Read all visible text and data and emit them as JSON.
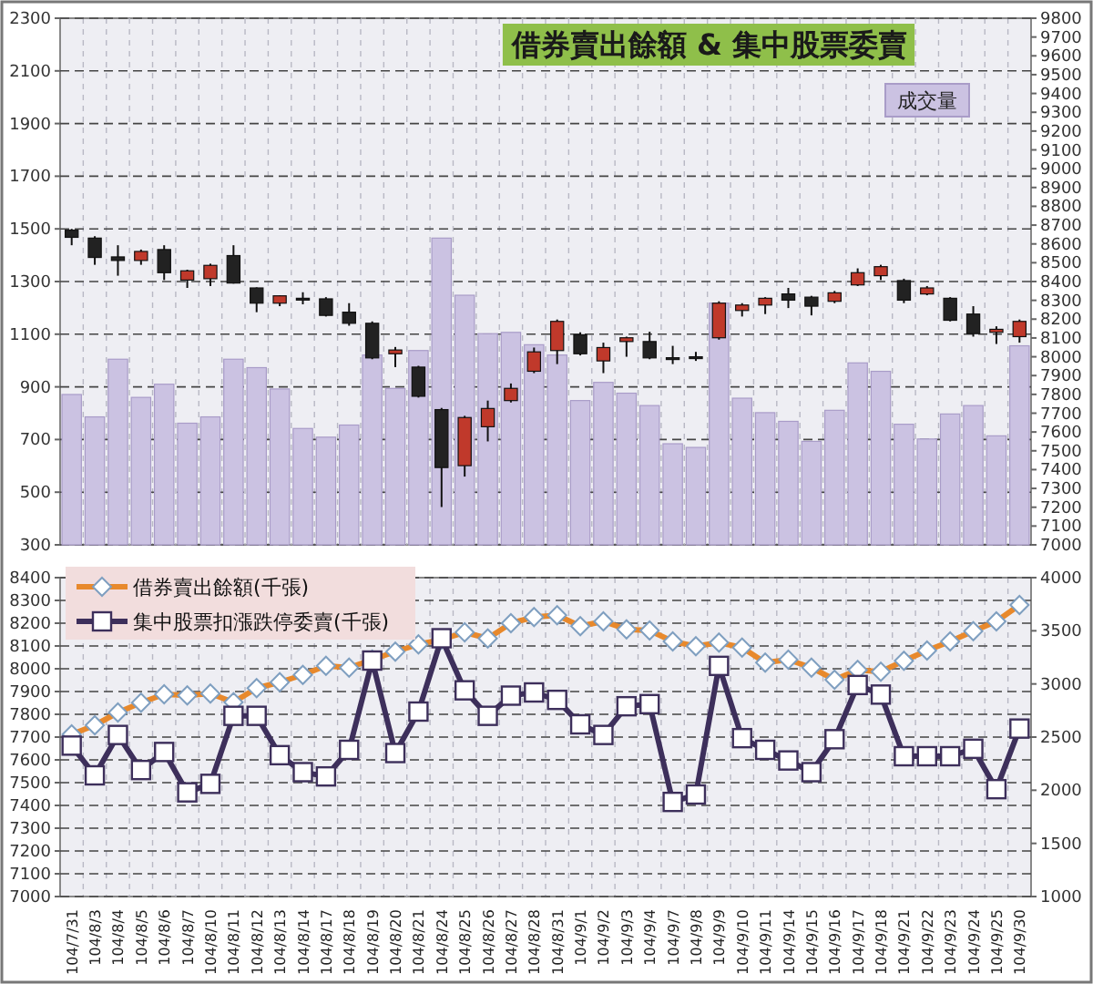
{
  "chart_data": [
    {
      "type": "candlestick",
      "title": "借券賣出餘額 & 集中股票委賣",
      "categories": [
        null,
        null,
        null,
        null,
        null,
        null,
        null,
        null,
        null,
        null,
        null,
        null,
        null,
        null,
        null,
        null,
        null,
        null,
        null,
        null,
        null,
        null,
        null,
        null,
        null,
        null,
        null,
        null,
        null,
        null,
        null,
        null,
        null,
        null,
        null,
        null,
        null,
        null,
        null,
        null,
        null,
        null
      ],
      "series": [
        {
          "name": "成交量",
          "type": "bar",
          "color": "#cbc2e2",
          "values": [
            871,
            786,
            1005,
            860,
            910,
            762,
            786,
            1005,
            973,
            892,
            742,
            709,
            755,
            1021,
            894,
            1038,
            1465,
            1248,
            1102,
            1107,
            1060,
            1021,
            848,
            917,
            876,
            829,
            684,
            670,
            1218,
            857,
            802,
            769,
            693,
            811,
            991,
            959,
            758,
            702,
            797,
            829,
            714,
            1056
          ]
        },
        {
          "axis": "y2",
          "colors": [
            "#222222",
            "#222222",
            "#222222",
            "#c0392b",
            "#222222",
            "#c0392b",
            "#c0392b",
            "#222222",
            "#222222",
            "#c0392b",
            "#222222",
            "#222222",
            "#222222",
            "#222222",
            "#c0392b",
            "#222222",
            "#222222",
            "#c0392b",
            "#c0392b",
            "#c0392b",
            "#c0392b",
            "#c0392b",
            "#222222",
            "#c0392b",
            "#c0392b",
            "#222222",
            "#222222",
            "#222222",
            "#c0392b",
            "#c0392b",
            "#c0392b",
            "#222222",
            "#222222",
            "#c0392b",
            "#c0392b",
            "#c0392b",
            "#222222",
            "#c0392b",
            "#222222",
            "#222222",
            "#c0392b",
            "#c0392b"
          ],
          "ohlc": [
            [
              8673,
              8680,
              8593,
              8635
            ],
            [
              8631,
              8641,
              8489,
              8528
            ],
            [
              8531,
              8593,
              8431,
              8512
            ],
            [
              8512,
              8570,
              8489,
              8560
            ],
            [
              8570,
              8593,
              8408,
              8447
            ],
            [
              8408,
              8463,
              8366,
              8457
            ],
            [
              8415,
              8495,
              8376,
              8486
            ],
            [
              8538,
              8593,
              8389,
              8392
            ],
            [
              8366,
              8369,
              8237,
              8285
            ],
            [
              8285,
              8327,
              8269,
              8324
            ],
            [
              8311,
              8343,
              8279,
              8305
            ],
            [
              8308,
              8317,
              8214,
              8220
            ],
            [
              8237,
              8285,
              8165,
              8178
            ],
            [
              8178,
              8188,
              7987,
              7994
            ],
            [
              8016,
              8052,
              7945,
              8036
            ],
            [
              7945,
              7952,
              7783,
              7790
            ],
            [
              7719,
              7728,
              7201,
              7411
            ],
            [
              7421,
              7686,
              7363,
              7677
            ],
            [
              7628,
              7767,
              7550,
              7725
            ],
            [
              7767,
              7858,
              7757,
              7832
            ],
            [
              7923,
              8049,
              7913,
              8026
            ],
            [
              8033,
              8198,
              7961,
              8188
            ],
            [
              8117,
              8130,
              8007,
              8016
            ],
            [
              7978,
              8075,
              7913,
              8049
            ],
            [
              8081,
              8107,
              8000,
              8101
            ],
            [
              8081,
              8133,
              7987,
              7994
            ],
            [
              7995,
              8058,
              7961,
              7990
            ],
            [
              8000,
              8026,
              7978,
              7997
            ],
            [
              8101,
              8295,
              8091,
              8285
            ],
            [
              8246,
              8285,
              8214,
              8275
            ],
            [
              8275,
              8317,
              8227,
              8311
            ],
            [
              8334,
              8366,
              8259,
              8301
            ],
            [
              8317,
              8324,
              8220,
              8269
            ],
            [
              8295,
              8350,
              8285,
              8340
            ],
            [
              8382,
              8470,
              8376,
              8447
            ],
            [
              8431,
              8489,
              8408,
              8479
            ],
            [
              8405,
              8415,
              8285,
              8301
            ],
            [
              8334,
              8376,
              8327,
              8366
            ],
            [
              8311,
              8317,
              8188,
              8194
            ],
            [
              8227,
              8269,
              8107,
              8123
            ],
            [
              8130,
              8162,
              8068,
              8146
            ],
            [
              8107,
              8198,
              8075,
              8188
            ]
          ]
        }
      ],
      "ylim": [
        300,
        2300
      ],
      "yticks": [
        300,
        500,
        700,
        900,
        1100,
        1300,
        1500,
        1700,
        1900,
        2100,
        2300
      ],
      "y2lim": [
        7000,
        9800
      ],
      "y2ticks": [
        7000,
        7100,
        7200,
        7300,
        7400,
        7500,
        7600,
        7700,
        7800,
        7900,
        8000,
        8100,
        8200,
        8300,
        8400,
        8500,
        8600,
        8700,
        8800,
        8900,
        9000,
        9100,
        9200,
        9300,
        9400,
        9500,
        9600,
        9700,
        9800
      ],
      "grid": true,
      "legend": "top right"
    },
    {
      "type": "line",
      "categories": [
        "104/7/31",
        "104/8/3",
        "104/8/4",
        "104/8/5",
        "104/8/6",
        "104/8/7",
        "104/8/10",
        "104/8/11",
        "104/8/12",
        "104/8/13",
        "104/8/14",
        "104/8/17",
        "104/8/18",
        "104/8/19",
        "104/8/20",
        "104/8/21",
        "104/8/24",
        "104/8/25",
        "104/8/26",
        "104/8/27",
        "104/8/28",
        "104/8/31",
        "104/9/1",
        "104/9/2",
        "104/9/3",
        "104/9/4",
        "104/9/7",
        "104/9/8",
        "104/9/9",
        "104/9/10",
        "104/9/11",
        "104/9/14",
        "104/9/15",
        "104/9/16",
        "104/9/17",
        "104/9/18",
        "104/9/21",
        "104/9/22",
        "104/9/23",
        "104/9/24",
        "104/9/25",
        "104/9/30"
      ],
      "series": [
        {
          "name": "借券賣出餘額(千張)",
          "color": "#e8892c",
          "marker": "diamond",
          "values": [
            7712,
            7752,
            7808,
            7851,
            7888,
            7883,
            7891,
            7853,
            7915,
            7941,
            7973,
            8013,
            8005,
            8040,
            8075,
            8107,
            8128,
            8160,
            8133,
            8200,
            8227,
            8235,
            8187,
            8208,
            8173,
            8168,
            8120,
            8099,
            8115,
            8093,
            8027,
            8040,
            8005,
            7952,
            7995,
            7987,
            8035,
            8080,
            8120,
            8165,
            8208,
            8280
          ]
        },
        {
          "name": "集中股票扣漲跌停委賣(千張)",
          "color": "#3d2f5b",
          "marker": "square",
          "axis": "y2",
          "values": [
            2420,
            2140,
            2520,
            2190,
            2360,
            1980,
            2060,
            2700,
            2700,
            2330,
            2170,
            2130,
            2380,
            3220,
            2350,
            2740,
            3430,
            2940,
            2700,
            2890,
            2920,
            2850,
            2620,
            2520,
            2790,
            2810,
            1890,
            1960,
            3170,
            2490,
            2380,
            2280,
            2170,
            2480,
            2990,
            2900,
            2320,
            2320,
            2320,
            2390,
            2010,
            2580
          ]
        }
      ],
      "ylim": [
        7000,
        8400
      ],
      "yticks": [
        7000,
        7100,
        7200,
        7300,
        7400,
        7500,
        7600,
        7700,
        7800,
        7900,
        8000,
        8100,
        8200,
        8300,
        8400
      ],
      "y2lim": [
        1000,
        4000
      ],
      "y2ticks": [
        1000,
        1500,
        2000,
        2500,
        3000,
        3500,
        4000
      ],
      "grid": true,
      "legend": "top left"
    }
  ]
}
